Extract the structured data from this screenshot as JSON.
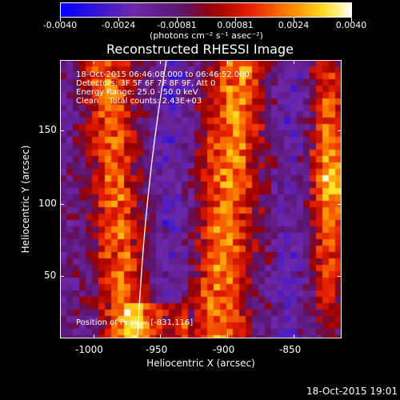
{
  "colorbar": {
    "ticks": [
      "-0.0040",
      "-0.0024",
      "-0.00081",
      "0.00081",
      "0.0024",
      "0.0040"
    ],
    "units": "(photons cm⁻² s⁻¹ asec⁻²)"
  },
  "title": "Reconstructed RHESSI Image",
  "info": {
    "time_range": "18-Oct-2015 06:46:08.000 to 06:46:52.000",
    "detectors": "Detectors: 3F 5F 6F 7F 8F 9F, Att 0",
    "energy": "Energy Range: 25.0 - 50.0 keV",
    "clean": "Clean    Total counts: 2.43E+03",
    "peak": "Position of Peak = [-831,116]"
  },
  "axes": {
    "xlabel": "Heliocentric X (arcsec)",
    "ylabel": "Heliocentric Y (arcsec)",
    "xticks": [
      "-1000",
      "-950",
      "-900",
      "-850"
    ],
    "yticks": [
      "50",
      "100",
      "150"
    ]
  },
  "timestamp": "18-Oct-2015 19:01"
}
